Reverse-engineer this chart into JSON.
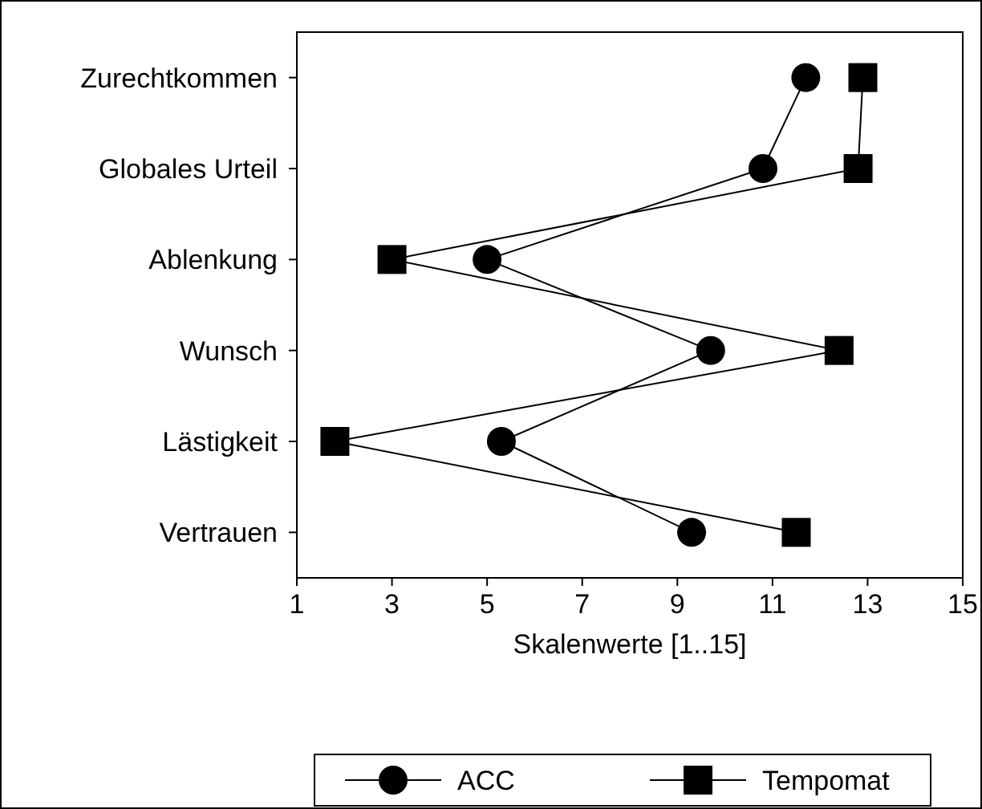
{
  "chart_data": {
    "type": "line",
    "orientation": "horizontal",
    "xlabel": "Skalenwerte [1..15]",
    "categories": [
      "Zurechtkommen",
      "Globales Urteil",
      "Ablenkung",
      "Wunsch",
      "Lästigkeit",
      "Vertrauen"
    ],
    "series": [
      {
        "name": "ACC",
        "color": "#000000",
        "marker": "circle",
        "values": [
          11.7,
          10.8,
          5.0,
          9.7,
          5.3,
          9.3
        ]
      },
      {
        "name": "Tempomat",
        "color": "#000000",
        "marker": "square",
        "values": [
          12.9,
          12.8,
          3.0,
          12.4,
          1.8,
          11.5
        ]
      }
    ],
    "xlim": [
      1,
      15
    ],
    "xticks": [
      1,
      3,
      5,
      7,
      9,
      11,
      13,
      15
    ],
    "legend": "bottom",
    "line_style": "solid"
  }
}
